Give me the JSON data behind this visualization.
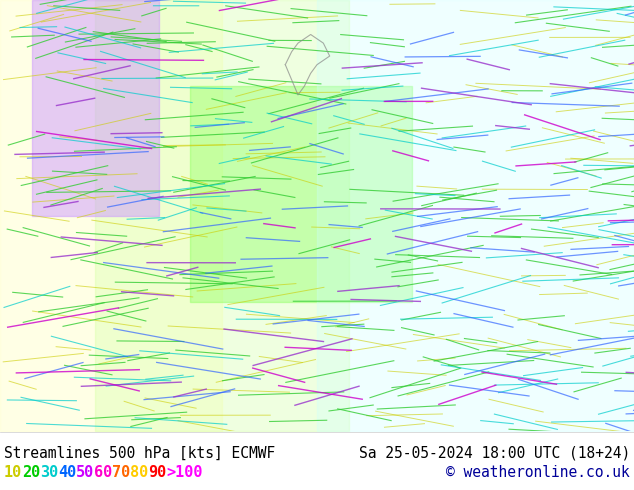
{
  "title_left": "Streamlines 500 hPa [kts] ECMWF",
  "title_right": "Sa 25-05-2024 18:00 UTC (18+24)",
  "copyright": "© weatheronline.co.uk",
  "legend_values": [
    "10",
    "20",
    "30",
    "40",
    "50",
    "60",
    "70",
    "80",
    "90",
    ">100"
  ],
  "legend_colors": [
    "#cccc00",
    "#00cc00",
    "#00cccc",
    "#0066ff",
    "#cc00ff",
    "#ff00cc",
    "#ff6600",
    "#ffcc00",
    "#ff0000",
    "#ff00ff"
  ],
  "bg_color": "#ffffff",
  "map_bg": "#f0f0f0",
  "bottom_bar_height": 0.12,
  "figsize": [
    6.34,
    4.9
  ],
  "dpi": 100,
  "bottom_text_color": "#000000",
  "copyright_color": "#000099"
}
